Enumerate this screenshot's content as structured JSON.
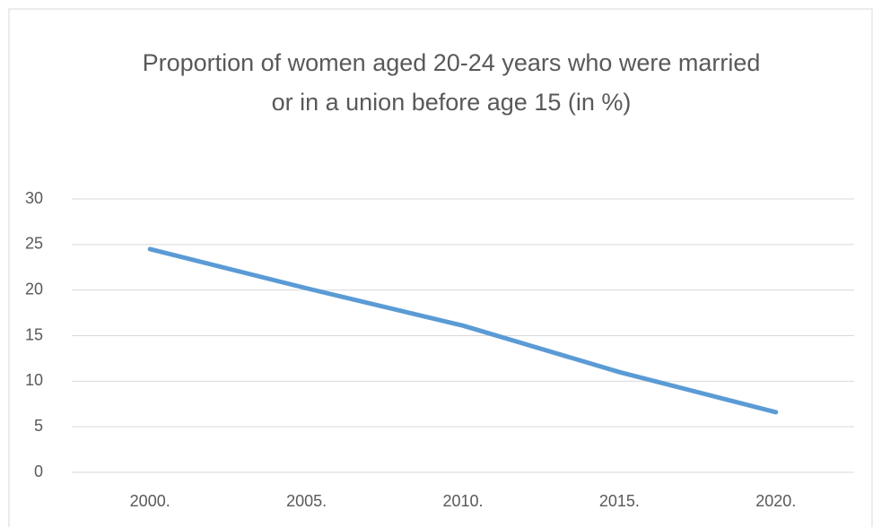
{
  "chart_data": {
    "type": "line",
    "title": "Proportion of women aged 20-24 years who were married or in a union before age 15 (in %)",
    "categories": [
      "2000.",
      "2005.",
      "2010.",
      "2015.",
      "2020."
    ],
    "series": [
      {
        "name": "Proportion",
        "color": "#5b9bd5",
        "values": [
          24.5,
          20.2,
          16.1,
          11,
          6.6
        ]
      }
    ],
    "ylim": [
      0,
      30
    ],
    "yticks": [
      0,
      5,
      10,
      15,
      20,
      25,
      30
    ],
    "grid": true
  }
}
